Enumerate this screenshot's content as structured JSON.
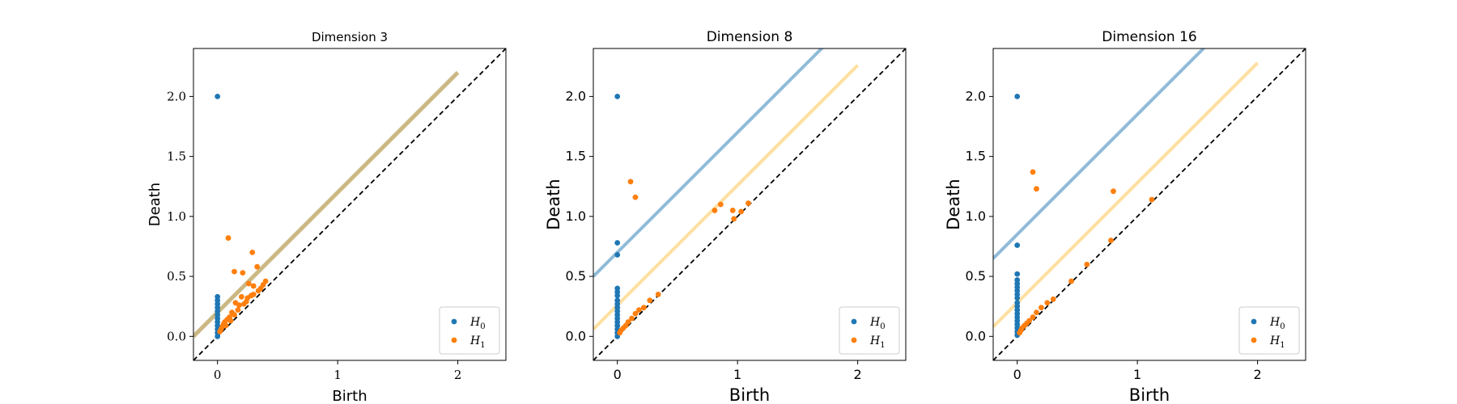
{
  "chart_data": [
    {
      "type": "scatter",
      "title": "Dimension 3",
      "xlabel": "Birth",
      "ylabel": "Death",
      "xlim": [
        -0.2,
        2.4
      ],
      "ylim": [
        -0.2,
        2.4
      ],
      "xticks": [
        "0",
        "1",
        "2"
      ],
      "yticks": [
        "0.0",
        "0.5",
        "1.0",
        "1.5",
        "2.0"
      ],
      "legend_position": "lower-right",
      "diagonal": {
        "style": "dashed",
        "color": "#000000"
      },
      "confidence_bands": [
        {
          "color": "#c8b47c",
          "offset": 0.2,
          "from_x": -0.2,
          "to_x": 2.0
        }
      ],
      "series": [
        {
          "name": "H0",
          "label_main": "H",
          "label_sub": "0",
          "color": "#1f77b4",
          "points": [
            [
              0,
              2.0
            ],
            [
              0,
              0.33
            ],
            [
              0,
              0.3
            ],
            [
              0,
              0.27
            ],
            [
              0,
              0.24
            ],
            [
              0,
              0.21
            ],
            [
              0,
              0.18
            ],
            [
              0,
              0.15
            ],
            [
              0,
              0.12
            ],
            [
              0,
              0.09
            ],
            [
              0,
              0.06
            ],
            [
              0,
              0.03
            ],
            [
              0,
              0.0
            ]
          ]
        },
        {
          "name": "H1",
          "label_main": "H",
          "label_sub": "1",
          "color": "#ff7f0e",
          "points": [
            [
              0.09,
              0.82
            ],
            [
              0.29,
              0.7
            ],
            [
              0.14,
              0.54
            ],
            [
              0.21,
              0.53
            ],
            [
              0.33,
              0.58
            ],
            [
              0.26,
              0.44
            ],
            [
              0.3,
              0.42
            ],
            [
              0.36,
              0.4
            ],
            [
              0.4,
              0.46
            ],
            [
              0.38,
              0.43
            ],
            [
              0.2,
              0.33
            ],
            [
              0.25,
              0.32
            ],
            [
              0.28,
              0.34
            ],
            [
              0.15,
              0.28
            ],
            [
              0.18,
              0.26
            ],
            [
              0.22,
              0.27
            ],
            [
              0.12,
              0.2
            ],
            [
              0.1,
              0.16
            ],
            [
              0.08,
              0.14
            ],
            [
              0.06,
              0.12
            ],
            [
              0.05,
              0.1
            ],
            [
              0.04,
              0.08
            ],
            [
              0.03,
              0.06
            ],
            [
              0.02,
              0.04
            ],
            [
              0.14,
              0.18
            ],
            [
              0.17,
              0.22
            ],
            [
              0.3,
              0.35
            ],
            [
              0.34,
              0.38
            ],
            [
              0.24,
              0.29
            ],
            [
              0.07,
              0.09
            ],
            [
              0.11,
              0.13
            ]
          ]
        }
      ]
    },
    {
      "type": "scatter",
      "title": "Dimension 8",
      "xlabel": "Birth",
      "ylabel": "Death",
      "xlim": [
        -0.2,
        2.4
      ],
      "ylim": [
        -0.2,
        2.4
      ],
      "xticks": [
        "0",
        "1",
        "2"
      ],
      "yticks": [
        "0.0",
        "0.5",
        "1.0",
        "1.5",
        "2.0"
      ],
      "legend_position": "lower-right",
      "diagonal": {
        "style": "dashed",
        "color": "#000000"
      },
      "confidence_bands": [
        {
          "color": "#1f77b4",
          "offset": 0.7,
          "from_x": -0.2,
          "to_x": 2.4
        },
        {
          "color": "#ffbf40",
          "offset": 0.26,
          "from_x": -0.2,
          "to_x": 2.0
        }
      ],
      "series": [
        {
          "name": "H0",
          "label_main": "H",
          "label_sub": "0",
          "color": "#1f77b4",
          "points": [
            [
              0,
              2.0
            ],
            [
              0,
              0.78
            ],
            [
              0,
              0.68
            ],
            [
              0,
              0.4
            ],
            [
              0,
              0.37
            ],
            [
              0,
              0.34
            ],
            [
              0,
              0.3
            ],
            [
              0,
              0.27
            ],
            [
              0,
              0.24
            ],
            [
              0,
              0.21
            ],
            [
              0,
              0.18
            ],
            [
              0,
              0.15
            ],
            [
              0,
              0.12
            ],
            [
              0,
              0.09
            ],
            [
              0,
              0.06
            ],
            [
              0,
              0.03
            ],
            [
              0,
              0.0
            ]
          ]
        },
        {
          "name": "H1",
          "label_main": "H",
          "label_sub": "1",
          "color": "#ff7f0e",
          "points": [
            [
              0.11,
              1.29
            ],
            [
              0.15,
              1.16
            ],
            [
              0.86,
              1.1
            ],
            [
              0.81,
              1.05
            ],
            [
              0.96,
              1.05
            ],
            [
              1.09,
              1.11
            ],
            [
              1.03,
              1.04
            ],
            [
              0.97,
              0.98
            ],
            [
              0.34,
              0.35
            ],
            [
              0.27,
              0.3
            ],
            [
              0.22,
              0.24
            ],
            [
              0.18,
              0.22
            ],
            [
              0.15,
              0.19
            ],
            [
              0.12,
              0.15
            ],
            [
              0.09,
              0.12
            ],
            [
              0.07,
              0.09
            ],
            [
              0.05,
              0.07
            ],
            [
              0.03,
              0.05
            ],
            [
              0.02,
              0.03
            ]
          ]
        }
      ]
    },
    {
      "type": "scatter",
      "title": "Dimension 16",
      "xlabel": "Birth",
      "ylabel": "Death",
      "xlim": [
        -0.2,
        2.4
      ],
      "ylim": [
        -0.2,
        2.4
      ],
      "xticks": [
        "0",
        "1",
        "2"
      ],
      "yticks": [
        "0.0",
        "0.5",
        "1.0",
        "1.5",
        "2.0"
      ],
      "legend_position": "lower-right",
      "diagonal": {
        "style": "dashed",
        "color": "#000000"
      },
      "confidence_bands": [
        {
          "color": "#1f77b4",
          "offset": 0.85,
          "from_x": -0.2,
          "to_x": 2.4
        },
        {
          "color": "#ffbf40",
          "offset": 0.28,
          "from_x": -0.2,
          "to_x": 2.0
        }
      ],
      "series": [
        {
          "name": "H0",
          "label_main": "H",
          "label_sub": "0",
          "color": "#1f77b4",
          "points": [
            [
              0,
              2.0
            ],
            [
              0,
              0.76
            ],
            [
              0,
              0.52
            ],
            [
              0,
              0.47
            ],
            [
              0,
              0.44
            ],
            [
              0,
              0.41
            ],
            [
              0,
              0.38
            ],
            [
              0,
              0.35
            ],
            [
              0,
              0.32
            ],
            [
              0,
              0.28
            ],
            [
              0,
              0.25
            ],
            [
              0,
              0.22
            ],
            [
              0,
              0.19
            ],
            [
              0,
              0.16
            ],
            [
              0,
              0.13
            ],
            [
              0,
              0.1
            ],
            [
              0,
              0.07
            ],
            [
              0,
              0.04
            ],
            [
              0,
              0.01
            ]
          ]
        },
        {
          "name": "H1",
          "label_main": "H",
          "label_sub": "1",
          "color": "#ff7f0e",
          "points": [
            [
              0.13,
              1.37
            ],
            [
              0.16,
              1.23
            ],
            [
              0.8,
              1.21
            ],
            [
              1.12,
              1.14
            ],
            [
              0.78,
              0.8
            ],
            [
              0.58,
              0.6
            ],
            [
              0.45,
              0.46
            ],
            [
              0.3,
              0.31
            ],
            [
              0.25,
              0.28
            ],
            [
              0.2,
              0.24
            ],
            [
              0.16,
              0.2
            ],
            [
              0.13,
              0.16
            ],
            [
              0.1,
              0.13
            ],
            [
              0.08,
              0.11
            ],
            [
              0.06,
              0.09
            ],
            [
              0.04,
              0.07
            ],
            [
              0.03,
              0.05
            ],
            [
              0.02,
              0.03
            ]
          ]
        }
      ]
    }
  ]
}
